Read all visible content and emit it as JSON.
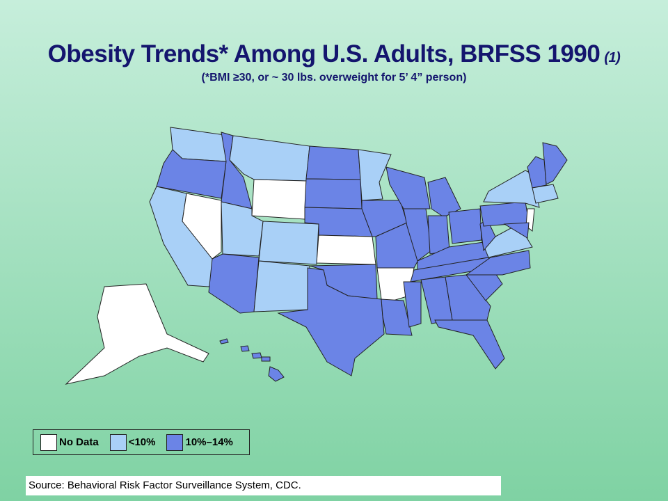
{
  "header": {
    "title": "Obesity Trends* Among U.S. Adults, BRFSS 1990",
    "title_note": "(1)",
    "subtitle": "(*BMI ≥30, or ~ 30 lbs. overweight for 5’ 4” person)"
  },
  "legend": {
    "items": [
      {
        "label": "No Data",
        "color": "#ffffff"
      },
      {
        "label": "<10%",
        "color": "#a9d0f7"
      },
      {
        "label": "10%–14%",
        "color": "#6b84e6"
      }
    ]
  },
  "footer": {
    "source": "Source: Behavioral Risk Factor Surveillance System, CDC."
  }
}
